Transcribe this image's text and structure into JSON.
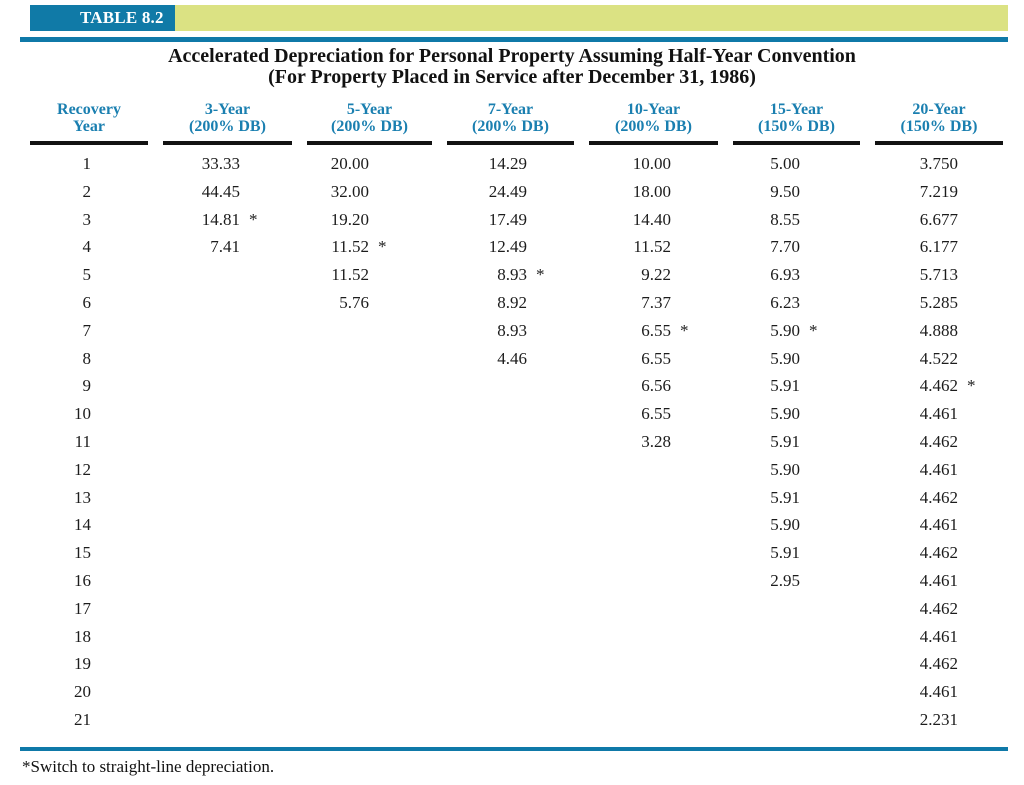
{
  "header": {
    "tag": "TABLE 8.2",
    "title_line1": "Accelerated Depreciation for Personal Property Assuming Half-Year Convention",
    "title_line2": "(For Property Placed in Service after December 31, 1986)"
  },
  "colors": {
    "tag_box_teal": "#107aa7",
    "tag_strip_yellow_green": "#dbe283",
    "column_header_blue": "#1a7fb0",
    "rule_blue": "#0f79a8"
  },
  "table": {
    "columns": [
      {
        "line1": "Recovery",
        "line2": "Year"
      },
      {
        "line1": "3-Year",
        "line2": "(200% DB)"
      },
      {
        "line1": "5-Year",
        "line2": "(200% DB)"
      },
      {
        "line1": "7-Year",
        "line2": "(200% DB)"
      },
      {
        "line1": "10-Year",
        "line2": "(200% DB)"
      },
      {
        "line1": "15-Year",
        "line2": "(150% DB)"
      },
      {
        "line1": "20-Year",
        "line2": "(150% DB)"
      }
    ],
    "rows": [
      {
        "year": "1",
        "values": [
          "33.33",
          "20.00",
          "14.29",
          "10.00",
          "5.00",
          "3.750"
        ],
        "stars": [
          "",
          "",
          "",
          "",
          "",
          ""
        ]
      },
      {
        "year": "2",
        "values": [
          "44.45",
          "32.00",
          "24.49",
          "18.00",
          "9.50",
          "7.219"
        ],
        "stars": [
          "",
          "",
          "",
          "",
          "",
          ""
        ]
      },
      {
        "year": "3",
        "values": [
          "14.81",
          "19.20",
          "17.49",
          "14.40",
          "8.55",
          "6.677"
        ],
        "stars": [
          "*",
          "",
          "",
          "",
          "",
          ""
        ]
      },
      {
        "year": "4",
        "values": [
          "7.41",
          "11.52",
          "12.49",
          "11.52",
          "7.70",
          "6.177"
        ],
        "stars": [
          "",
          "*",
          "",
          "",
          "",
          ""
        ]
      },
      {
        "year": "5",
        "values": [
          "",
          "11.52",
          "8.93",
          "9.22",
          "6.93",
          "5.713"
        ],
        "stars": [
          "",
          "",
          "*",
          "",
          "",
          ""
        ]
      },
      {
        "year": "6",
        "values": [
          "",
          "5.76",
          "8.92",
          "7.37",
          "6.23",
          "5.285"
        ],
        "stars": [
          "",
          "",
          "",
          "",
          "",
          ""
        ]
      },
      {
        "year": "7",
        "values": [
          "",
          "",
          "8.93",
          "6.55",
          "5.90",
          "4.888"
        ],
        "stars": [
          "",
          "",
          "",
          "*",
          "*",
          ""
        ]
      },
      {
        "year": "8",
        "values": [
          "",
          "",
          "4.46",
          "6.55",
          "5.90",
          "4.522"
        ],
        "stars": [
          "",
          "",
          "",
          "",
          "",
          ""
        ]
      },
      {
        "year": "9",
        "values": [
          "",
          "",
          "",
          "6.56",
          "5.91",
          "4.462"
        ],
        "stars": [
          "",
          "",
          "",
          "",
          "",
          "*"
        ]
      },
      {
        "year": "10",
        "values": [
          "",
          "",
          "",
          "6.55",
          "5.90",
          "4.461"
        ],
        "stars": [
          "",
          "",
          "",
          "",
          "",
          ""
        ]
      },
      {
        "year": "11",
        "values": [
          "",
          "",
          "",
          "3.28",
          "5.91",
          "4.462"
        ],
        "stars": [
          "",
          "",
          "",
          "",
          "",
          ""
        ]
      },
      {
        "year": "12",
        "values": [
          "",
          "",
          "",
          "",
          "5.90",
          "4.461"
        ],
        "stars": [
          "",
          "",
          "",
          "",
          "",
          ""
        ]
      },
      {
        "year": "13",
        "values": [
          "",
          "",
          "",
          "",
          "5.91",
          "4.462"
        ],
        "stars": [
          "",
          "",
          "",
          "",
          "",
          ""
        ]
      },
      {
        "year": "14",
        "values": [
          "",
          "",
          "",
          "",
          "5.90",
          "4.461"
        ],
        "stars": [
          "",
          "",
          "",
          "",
          "",
          ""
        ]
      },
      {
        "year": "15",
        "values": [
          "",
          "",
          "",
          "",
          "5.91",
          "4.462"
        ],
        "stars": [
          "",
          "",
          "",
          "",
          "",
          ""
        ]
      },
      {
        "year": "16",
        "values": [
          "",
          "",
          "",
          "",
          "2.95",
          "4.461"
        ],
        "stars": [
          "",
          "",
          "",
          "",
          "",
          ""
        ]
      },
      {
        "year": "17",
        "values": [
          "",
          "",
          "",
          "",
          "",
          "4.462"
        ],
        "stars": [
          "",
          "",
          "",
          "",
          "",
          ""
        ]
      },
      {
        "year": "18",
        "values": [
          "",
          "",
          "",
          "",
          "",
          "4.461"
        ],
        "stars": [
          "",
          "",
          "",
          "",
          "",
          ""
        ]
      },
      {
        "year": "19",
        "values": [
          "",
          "",
          "",
          "",
          "",
          "4.462"
        ],
        "stars": [
          "",
          "",
          "",
          "",
          "",
          ""
        ]
      },
      {
        "year": "20",
        "values": [
          "",
          "",
          "",
          "",
          "",
          "4.461"
        ],
        "stars": [
          "",
          "",
          "",
          "",
          "",
          ""
        ]
      },
      {
        "year": "21",
        "values": [
          "",
          "",
          "",
          "",
          "",
          "2.231"
        ],
        "stars": [
          "",
          "",
          "",
          "",
          "",
          ""
        ]
      }
    ]
  },
  "footnote": "*Switch to straight-line depreciation."
}
